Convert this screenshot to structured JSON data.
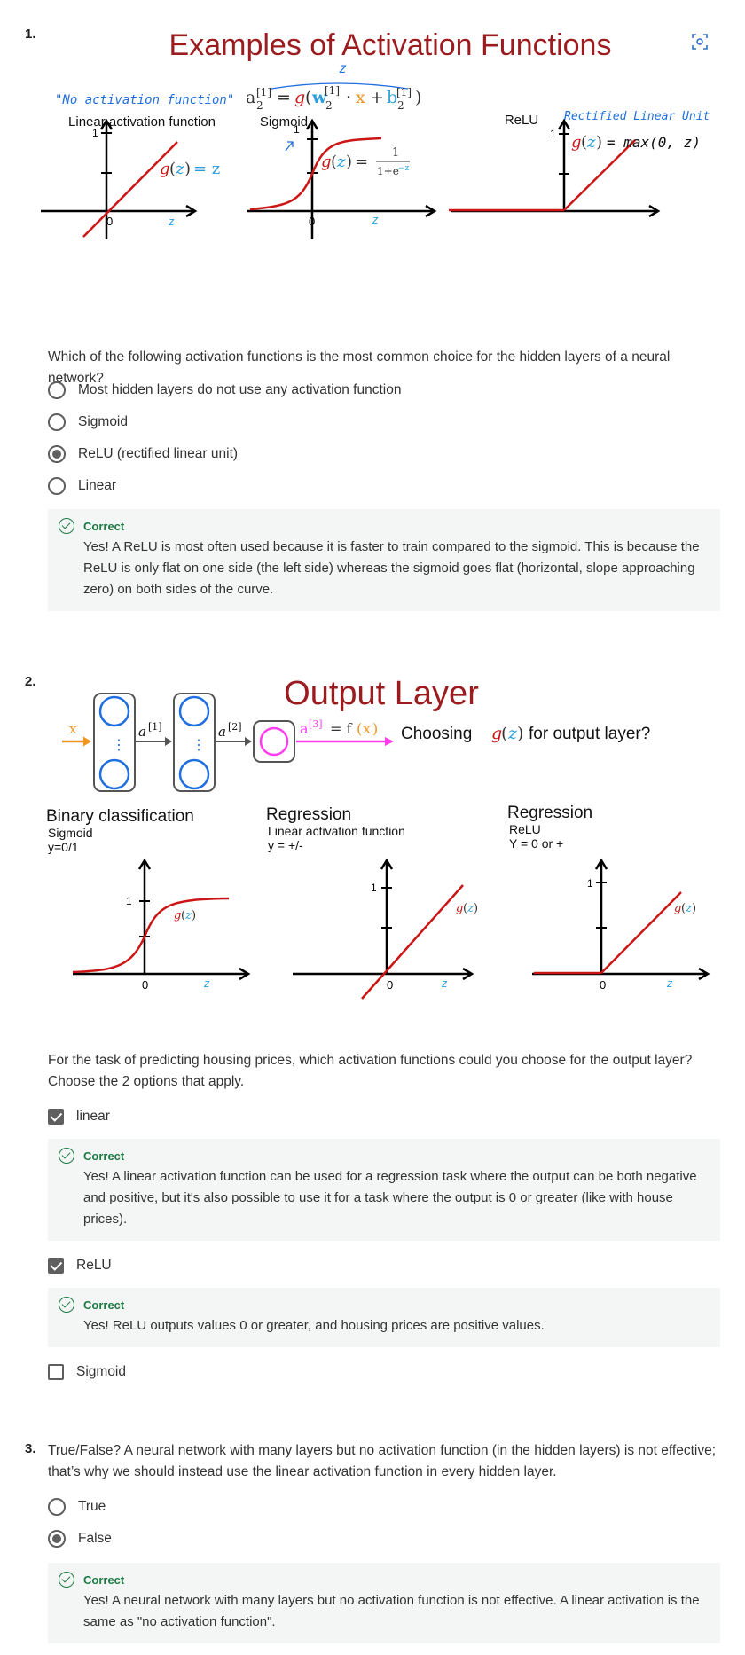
{
  "q1": {
    "number": "1.",
    "figure": {
      "title": "Examples of Activation Functions",
      "handnote_left": "\"No activation function\"",
      "formula_z": "z",
      "formula": {
        "lhs": "a",
        "lhs_sup": "[1]",
        "lhs_sub": "2",
        "eq": "=",
        "g": "g",
        "w": "w",
        "w_sup": "[1]",
        "w_sub": "2",
        "dot": "·",
        "x": "x",
        "plus": "+",
        "b": "b",
        "b_sup": "[1]",
        "b_sub": "2"
      },
      "panels": [
        {
          "title": "Linear activation function",
          "one": "1",
          "zero": "0",
          "z": "z",
          "eq_g": "g",
          "eq_z": "z",
          "eq_rest": "= z"
        },
        {
          "title": "Sigmoid",
          "one": "1",
          "zero": "0",
          "z": "z",
          "eq_g": "g",
          "eq_z": "z",
          "eq_rest": "=",
          "frac_num": "1",
          "frac_den": "1+e",
          "frac_exp": "−z"
        },
        {
          "title": "ReLU",
          "subtitle": "Rectified Linear Unit",
          "one": "1",
          "eq_g": "g",
          "eq_z": "z",
          "eq_rest": "= max(0, z)"
        }
      ]
    },
    "question": "Which of the following activation functions is the most common choice for the hidden layers of a neural network?",
    "options": [
      "Most hidden layers do not use any activation function",
      "Sigmoid",
      "ReLU (rectified linear unit)",
      "Linear"
    ],
    "selected": 2,
    "feedback": {
      "label": "Correct",
      "text": "Yes! A ReLU is most often used because it is faster to train compared to the sigmoid. This is because the ReLU is only flat on one side (the left side) whereas the sigmoid goes flat (horizontal, slope approaching zero) on both sides of the curve."
    }
  },
  "q2": {
    "number": "2.",
    "figure": {
      "title": "Output Layer",
      "x_label": "x",
      "a1": "a",
      "a1_sup": "[1]",
      "a2": "a",
      "a2_sup": "[2]",
      "a3": "a",
      "a3_sup": "[3]",
      "eq": "= f",
      "fx": "x",
      "choosing_pre": "Choosing",
      "choosing_g": "g",
      "choosing_z": "z",
      "choosing_post": "for output layer?",
      "panels": [
        {
          "title": "Binary classification",
          "sub1": "Sigmoid",
          "sub2": "y=0/1",
          "one": "1",
          "zero": "0",
          "z": "z",
          "g": "g",
          "gz": "z"
        },
        {
          "title": "Regression",
          "sub1": "Linear activation function",
          "sub2": "y = +/-",
          "one": "1",
          "zero": "0",
          "z": "z",
          "g": "g",
          "gz": "z"
        },
        {
          "title": "Regression",
          "sub1": "ReLU",
          "sub2": "Y = 0 or +",
          "one": "1",
          "zero": "0",
          "z": "z",
          "g": "g",
          "gz": "z"
        }
      ]
    },
    "question_line1": "For the task of predicting housing prices, which activation functions could you choose for the output layer?",
    "question_line2": "Choose the 2 options that apply.",
    "options": [
      {
        "label": "linear",
        "checked": true,
        "feedback": {
          "label": "Correct",
          "text": "Yes! A linear activation function can be used for a regression task where the output can be both negative and positive, but it's also possible to use it for a task where the output is 0 or greater (like with house prices)."
        }
      },
      {
        "label": "ReLU",
        "checked": true,
        "feedback": {
          "label": "Correct",
          "text": "Yes! ReLU outputs values 0 or greater, and housing prices are positive values."
        }
      },
      {
        "label": "Sigmoid",
        "checked": false
      }
    ]
  },
  "q3": {
    "number": "3.",
    "question": "True/False? A neural network with many layers but no activation function (in the hidden layers) is not effective; that’s why we should instead use the linear activation function in every hidden layer.",
    "options": [
      "True",
      "False"
    ],
    "selected": 1,
    "feedback": {
      "label": "Correct",
      "text": "Yes! A neural network with many layers but no activation function is not effective. A linear activation is the same as \"no activation function\"."
    }
  },
  "colors": {
    "title_red": "#9b1b1f",
    "curve_red": "#cc1515",
    "z_blue": "#2b9fdb",
    "hand_blue": "#1f6fe0",
    "x_orange": "#f0961e",
    "magenta": "#ff3df0",
    "correct_green": "#1f7a45"
  },
  "icons": {
    "zoom": "focus-zoom-icon",
    "correct": "check-circle-icon"
  }
}
